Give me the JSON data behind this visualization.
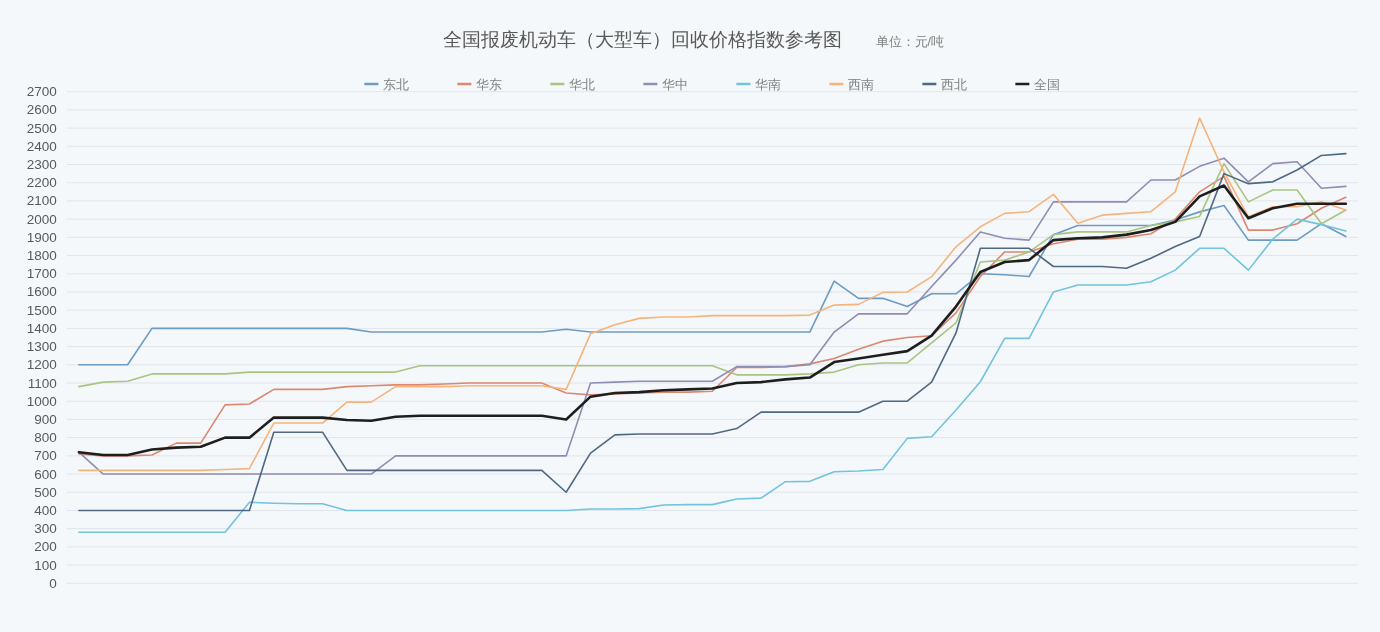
{
  "chart_data": {
    "type": "line",
    "title": "全国报废机动车（大型车）回收价格指数参考图",
    "annotations": [
      "单位：元/吨"
    ],
    "categories": [
      null,
      null,
      null,
      null,
      null,
      null,
      null,
      null,
      null,
      null,
      null,
      null,
      null,
      null,
      null,
      null,
      null,
      null,
      null,
      null,
      null,
      null,
      null,
      null,
      null,
      null,
      null,
      null,
      null,
      null,
      null,
      null,
      null,
      null,
      null,
      null,
      null,
      null,
      null,
      null,
      null,
      null,
      null,
      null,
      null,
      null,
      null,
      null,
      null,
      null,
      null,
      null,
      null
    ],
    "series": [
      {
        "name": "东北",
        "color": "#6c9bc6",
        "values": [
          1200,
          1200,
          1200,
          1400,
          1400,
          1400,
          1400,
          1400,
          1400,
          1400,
          1400,
          1400,
          1380,
          1380,
          1380,
          1380,
          1380,
          1380,
          1380,
          1380,
          1395,
          1380,
          1380,
          1380,
          1380,
          1380,
          1380,
          1380,
          1380,
          1380,
          1380,
          1660,
          1565,
          1565,
          1520,
          1590,
          1590,
          1700,
          1695,
          1685,
          1915,
          1965,
          1965,
          1965,
          1965,
          1995,
          2040,
          2075,
          1885,
          1885,
          1885,
          1975,
          1905
        ]
      },
      {
        "name": "华东",
        "color": "#dc8770",
        "values": [
          710,
          700,
          700,
          705,
          770,
          770,
          980,
          985,
          1065,
          1065,
          1065,
          1080,
          1085,
          1090,
          1090,
          1095,
          1100,
          1100,
          1100,
          1100,
          1045,
          1035,
          1040,
          1045,
          1050,
          1050,
          1055,
          1185,
          1185,
          1190,
          1205,
          1235,
          1285,
          1330,
          1350,
          1360,
          1485,
          1685,
          1820,
          1820,
          1865,
          1890,
          1890,
          1900,
          1920,
          2000,
          2150,
          2235,
          1940,
          1940,
          1975,
          2060,
          2120
        ]
      },
      {
        "name": "华北",
        "color": "#a9c47f",
        "values": [
          1080,
          1105,
          1110,
          1150,
          1150,
          1150,
          1150,
          1160,
          1160,
          1160,
          1160,
          1160,
          1160,
          1160,
          1195,
          1195,
          1195,
          1195,
          1195,
          1195,
          1195,
          1195,
          1195,
          1195,
          1195,
          1195,
          1195,
          1145,
          1145,
          1145,
          1150,
          1160,
          1200,
          1210,
          1210,
          1320,
          1430,
          1765,
          1775,
          1820,
          1915,
          1930,
          1930,
          1930,
          1965,
          1985,
          2015,
          2305,
          2095,
          2160,
          2160,
          1975,
          2050
        ]
      },
      {
        "name": "华中",
        "color": "#8f8db3",
        "values": [
          720,
          600,
          600,
          600,
          600,
          600,
          600,
          600,
          600,
          600,
          600,
          600,
          600,
          700,
          700,
          700,
          700,
          700,
          700,
          700,
          700,
          1100,
          1105,
          1110,
          1110,
          1110,
          1110,
          1190,
          1190,
          1190,
          1200,
          1380,
          1480,
          1480,
          1480,
          1630,
          1775,
          1930,
          1895,
          1885,
          2095,
          2095,
          2095,
          2095,
          2215,
          2215,
          2290,
          2335,
          2205,
          2305,
          2315,
          2170,
          2180
        ]
      },
      {
        "name": "华南",
        "color": "#71c4de",
        "values": [
          280,
          280,
          280,
          280,
          280,
          280,
          280,
          445,
          440,
          437,
          437,
          400,
          400,
          400,
          400,
          400,
          400,
          400,
          400,
          400,
          400,
          408,
          408,
          410,
          430,
          432,
          432,
          463,
          468,
          558,
          560,
          613,
          617,
          625,
          796,
          805,
          952,
          1107,
          1345,
          1345,
          1600,
          1638,
          1638,
          1638,
          1656,
          1720,
          1840,
          1840,
          1720,
          1890,
          2000,
          1970,
          1935
        ]
      },
      {
        "name": "西南",
        "color": "#f6b47a",
        "values": [
          620,
          620,
          620,
          620,
          620,
          620,
          625,
          630,
          880,
          880,
          880,
          995,
          995,
          1080,
          1080,
          1080,
          1085,
          1085,
          1085,
          1085,
          1065,
          1370,
          1420,
          1455,
          1463,
          1463,
          1470,
          1470,
          1470,
          1470,
          1473,
          1528,
          1532,
          1598,
          1600,
          1684,
          1848,
          1958,
          2032,
          2041,
          2136,
          1977,
          2022,
          2032,
          2041,
          2150,
          2555,
          2260,
          2013,
          2068,
          2068,
          2096,
          2050
        ]
      },
      {
        "name": "西北",
        "color": "#4f6884",
        "values": [
          400,
          400,
          400,
          400,
          400,
          400,
          400,
          400,
          830,
          830,
          830,
          620,
          620,
          620,
          620,
          620,
          620,
          620,
          620,
          620,
          500,
          715,
          815,
          820,
          820,
          820,
          820,
          850,
          940,
          940,
          940,
          940,
          940,
          1000,
          1000,
          1105,
          1375,
          1840,
          1840,
          1840,
          1740,
          1740,
          1740,
          1730,
          1785,
          1850,
          1905,
          2250,
          2195,
          2205,
          2270,
          2350,
          2360
        ]
      },
      {
        "name": "全国",
        "color": "#1e1e1e",
        "values": [
          720,
          705,
          705,
          735,
          745,
          750,
          800,
          800,
          910,
          910,
          910,
          897,
          893,
          915,
          920,
          920,
          920,
          920,
          920,
          920,
          900,
          1025,
          1045,
          1050,
          1060,
          1065,
          1070,
          1100,
          1105,
          1120,
          1130,
          1215,
          1235,
          1255,
          1275,
          1360,
          1520,
          1710,
          1765,
          1775,
          1885,
          1895,
          1900,
          1915,
          1940,
          1985,
          2125,
          2185,
          2005,
          2060,
          2085,
          2085,
          2085
        ]
      }
    ],
    "ylim": [
      0,
      2700
    ],
    "yticks": [
      0,
      100,
      200,
      300,
      400,
      500,
      600,
      700,
      800,
      900,
      1000,
      1100,
      1200,
      1300,
      1400,
      1500,
      1600,
      1700,
      1800,
      1900,
      2000,
      2100,
      2200,
      2300,
      2400,
      2500,
      2600,
      2700
    ],
    "grid": "y",
    "legend": "top"
  }
}
